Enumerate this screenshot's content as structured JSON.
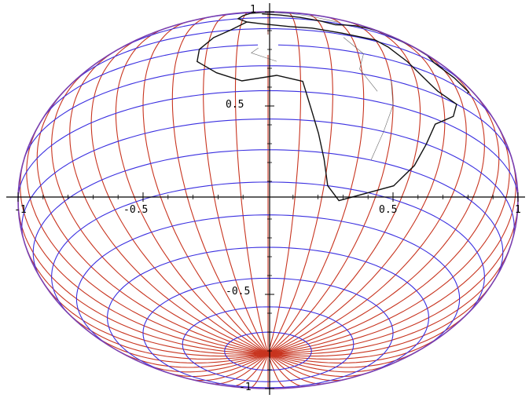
{
  "figure": {
    "description_type": "globe-projection-plot",
    "axes": {
      "x_ticks": [
        "-1",
        "-0.5",
        "0.5",
        "1"
      ],
      "y_ticks": [
        "1",
        "0.5",
        "-0.5",
        "-1"
      ],
      "x_tick_values": [
        -1,
        -0.5,
        0.5,
        1
      ],
      "y_tick_values": [
        1,
        0.5,
        -0.5,
        -1
      ]
    },
    "colors": {
      "meridians": "#c8341f",
      "parallels": "#3a2fe0",
      "outline": "#7a3fb0",
      "coastlines": "#111111",
      "axes": "#000000"
    },
    "grid": {
      "meridian_step_deg": 7.5,
      "parallel_step_deg": 10
    }
  }
}
